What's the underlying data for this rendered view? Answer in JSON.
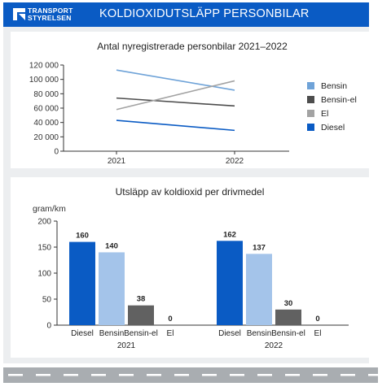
{
  "header": {
    "logo_line1": "TRANSPORT",
    "logo_line2": "STYRELSEN",
    "title": "KOLDIOXIDUTSLÄPP PERSONBILAR",
    "background_color": "#0a5bc4"
  },
  "chart_data": [
    {
      "type": "line",
      "title": "Antal nyregistrerade personbilar 2021–2022",
      "categories": [
        "2021",
        "2022"
      ],
      "ylim": [
        0,
        120000
      ],
      "yticks": [
        0,
        20000,
        40000,
        60000,
        80000,
        100000,
        120000
      ],
      "ytick_labels": [
        "0",
        "20 000",
        "40 000",
        "60 000",
        "80 000",
        "100 000",
        "120 000"
      ],
      "grid": false,
      "legend_position": "right",
      "series": [
        {
          "name": "Bensin",
          "color": "#6fa3d8",
          "values": [
            113000,
            85000
          ]
        },
        {
          "name": "Bensin-el",
          "color": "#4d4d4d",
          "values": [
            74000,
            63000
          ]
        },
        {
          "name": "El",
          "color": "#a3a3a3",
          "values": [
            58000,
            98000
          ]
        },
        {
          "name": "Diesel",
          "color": "#0a5bc4",
          "values": [
            43000,
            29000
          ]
        }
      ]
    },
    {
      "type": "bar",
      "title": "Utsläpp av koldioxid per drivmedel",
      "ylabel": "gram/km",
      "ylim": [
        0,
        200
      ],
      "yticks": [
        0,
        50,
        100,
        150,
        200
      ],
      "groups": [
        "2021",
        "2022"
      ],
      "categories": [
        "Diesel",
        "Bensin",
        "Bensin-el",
        "El"
      ],
      "category_colors": [
        "#0a5bc4",
        "#a4c4ea",
        "#616161",
        "#9e9e9e"
      ],
      "series": [
        {
          "group": "2021",
          "values": [
            160,
            140,
            38,
            0
          ]
        },
        {
          "group": "2022",
          "values": [
            162,
            137,
            30,
            0
          ]
        }
      ]
    }
  ]
}
